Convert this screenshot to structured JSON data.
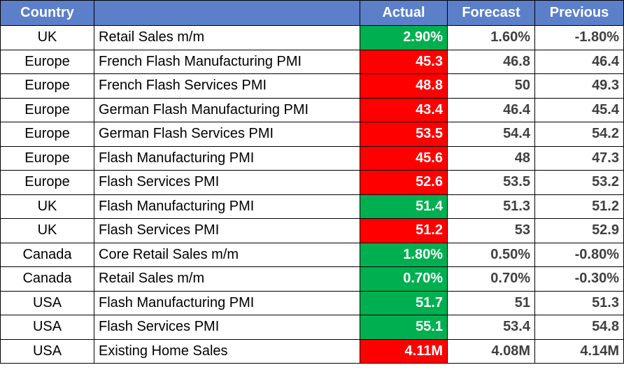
{
  "colors": {
    "header_bg": "#5b7fc9",
    "beat": "#00b050",
    "miss": "#ff0000"
  },
  "headers": {
    "country": "Country",
    "event": "",
    "actual": "Actual",
    "forecast": "Forecast",
    "previous": "Previous"
  },
  "rows": [
    {
      "country": "UK",
      "event": "Retail Sales m/m",
      "actual": "2.90%",
      "forecast": "1.60%",
      "previous": "-1.80%",
      "status": "beat"
    },
    {
      "country": "Europe",
      "event": "French Flash Manufacturing PMI",
      "actual": "45.3",
      "forecast": "46.8",
      "previous": "46.4",
      "status": "miss"
    },
    {
      "country": "Europe",
      "event": "French Flash Services PMI",
      "actual": "48.8",
      "forecast": "50",
      "previous": "49.3",
      "status": "miss"
    },
    {
      "country": "Europe",
      "event": "German Flash Manufacturing PMI",
      "actual": "43.4",
      "forecast": "46.4",
      "previous": "45.4",
      "status": "miss"
    },
    {
      "country": "Europe",
      "event": "German Flash Services PMI",
      "actual": "53.5",
      "forecast": "54.4",
      "previous": "54.2",
      "status": "miss"
    },
    {
      "country": "Europe",
      "event": "Flash Manufacturing PMI",
      "actual": "45.6",
      "forecast": "48",
      "previous": "47.3",
      "status": "miss"
    },
    {
      "country": "Europe",
      "event": "Flash Services PMI",
      "actual": "52.6",
      "forecast": "53.5",
      "previous": "53.2",
      "status": "miss"
    },
    {
      "country": "UK",
      "event": "Flash Manufacturing PMI",
      "actual": "51.4",
      "forecast": "51.3",
      "previous": "51.2",
      "status": "beat"
    },
    {
      "country": "UK",
      "event": "Flash Services PMI",
      "actual": "51.2",
      "forecast": "53",
      "previous": "52.9",
      "status": "miss"
    },
    {
      "country": "Canada",
      "event": "Core Retail Sales m/m",
      "actual": "1.80%",
      "forecast": "0.50%",
      "previous": "-0.80%",
      "status": "beat"
    },
    {
      "country": "Canada",
      "event": "Retail Sales m/m",
      "actual": "0.70%",
      "forecast": "0.70%",
      "previous": "-0.30%",
      "status": "beat"
    },
    {
      "country": "USA",
      "event": "Flash Manufacturing PMI",
      "actual": "51.7",
      "forecast": "51",
      "previous": "51.3",
      "status": "beat"
    },
    {
      "country": "USA",
      "event": "Flash Services PMI",
      "actual": "55.1",
      "forecast": "53.4",
      "previous": "54.8",
      "status": "beat"
    },
    {
      "country": "USA",
      "event": "Existing Home Sales",
      "actual": "4.11M",
      "forecast": "4.08M",
      "previous": "4.14M",
      "status": "miss"
    }
  ]
}
